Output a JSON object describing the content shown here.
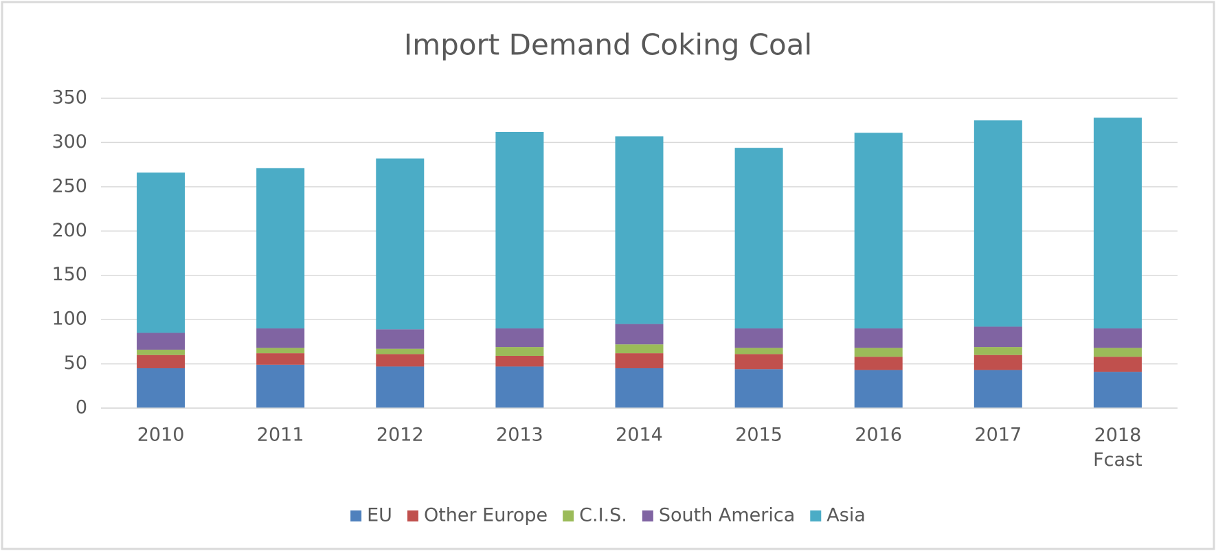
{
  "chart_data": {
    "type": "stacked_bar",
    "title": "Import Demand Coking Coal",
    "categories": [
      "2010",
      "2011",
      "2012",
      "2013",
      "2014",
      "2015",
      "2016",
      "2017",
      "2018\nFcast"
    ],
    "series": [
      {
        "name": "EU",
        "color": "#4f81bd",
        "values": [
          45,
          49,
          47,
          47,
          45,
          44,
          43,
          43,
          41
        ]
      },
      {
        "name": "Other Europe",
        "color": "#c0504d",
        "values": [
          15,
          13,
          14,
          12,
          17,
          17,
          15,
          17,
          17
        ]
      },
      {
        "name": "C.I.S.",
        "color": "#9bbb59",
        "values": [
          6,
          6,
          6,
          10,
          10,
          7,
          10,
          9,
          10
        ]
      },
      {
        "name": "South America",
        "color": "#8064a2",
        "values": [
          19,
          22,
          22,
          21,
          23,
          22,
          22,
          23,
          22
        ]
      },
      {
        "name": "Asia",
        "color": "#4bacc6",
        "values": [
          181,
          181,
          193,
          222,
          212,
          204,
          221,
          233,
          238
        ]
      }
    ],
    "ylim": [
      0,
      350
    ],
    "yticks": [
      0,
      50,
      100,
      150,
      200,
      250,
      300,
      350
    ],
    "grid": true,
    "legend": "bottom"
  }
}
